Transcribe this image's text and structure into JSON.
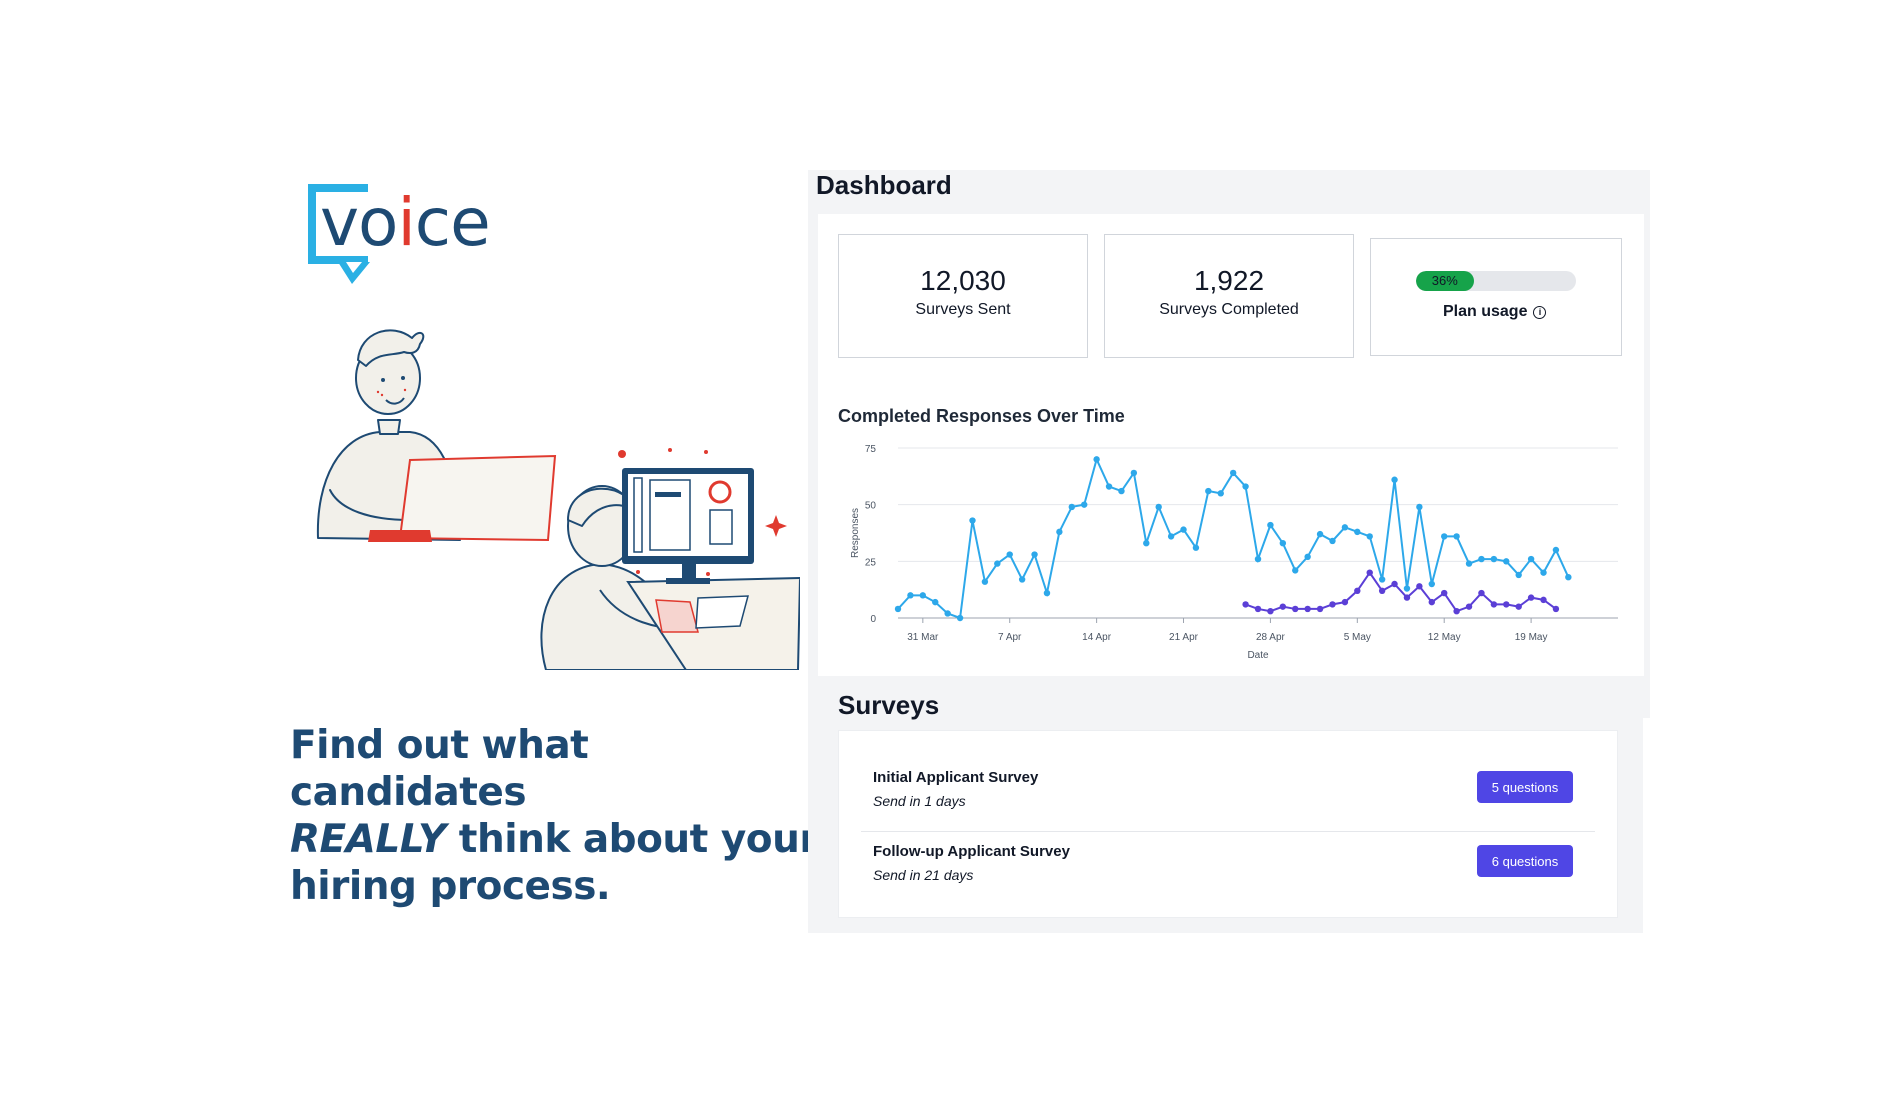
{
  "logo": {
    "part1": "vo",
    "part2": "i",
    "part3": "ce"
  },
  "headline": {
    "line1": "Find out what candidates",
    "emph": "REALLY",
    "line2_rest": " think about your",
    "line3": "hiring process."
  },
  "dashboard": {
    "title": "Dashboard",
    "stats": [
      {
        "value": "12,030",
        "label": "Surveys Sent"
      },
      {
        "value": "1,922",
        "label": "Surveys Completed"
      }
    ],
    "plan_usage": {
      "percent_text": "36%",
      "fraction": 0.36,
      "label": "Plan usage",
      "info_icon": "i"
    }
  },
  "chart_title": "Completed Responses Over Time",
  "chart_data": {
    "type": "line",
    "title": "Completed Responses Over Time",
    "xlabel": "Date",
    "ylabel": "Responses",
    "ylim": [
      0,
      75
    ],
    "yticks": [
      "0",
      "25",
      "50",
      "75"
    ],
    "xticks": [
      "31 Mar",
      "7 Apr",
      "14 Apr",
      "21 Apr",
      "28 Apr",
      "5 May",
      "12 May",
      "19 May"
    ],
    "grid": true,
    "series": [
      {
        "color": "#2da8ea",
        "start_date": "29 Mar",
        "values": [
          4,
          10,
          10,
          7,
          2,
          0,
          43,
          16,
          24,
          28,
          17,
          28,
          11,
          38,
          49,
          50,
          70,
          58,
          56,
          64,
          33,
          49,
          36,
          39,
          31,
          56,
          55,
          64,
          58,
          26,
          41,
          33,
          21,
          27,
          37,
          34,
          40,
          38,
          36,
          17,
          61,
          13,
          49,
          15,
          36,
          36,
          24,
          26,
          26,
          25,
          19,
          26,
          20,
          30,
          18
        ]
      },
      {
        "color": "#5b3fd6",
        "start_date": "26 Apr",
        "values": [
          6,
          4,
          3,
          5,
          4,
          4,
          4,
          6,
          7,
          12,
          20,
          12,
          15,
          9,
          14,
          7,
          11,
          3,
          5,
          11,
          6,
          6,
          5,
          9,
          8,
          4
        ]
      }
    ]
  },
  "surveys": {
    "title": "Surveys",
    "items": [
      {
        "name": "Initial Applicant Survey",
        "sub": "Send in 1 days",
        "button": "5 questions"
      },
      {
        "name": "Follow-up Applicant Survey",
        "sub": "Send in 21 days",
        "button": "6 questions"
      }
    ]
  }
}
